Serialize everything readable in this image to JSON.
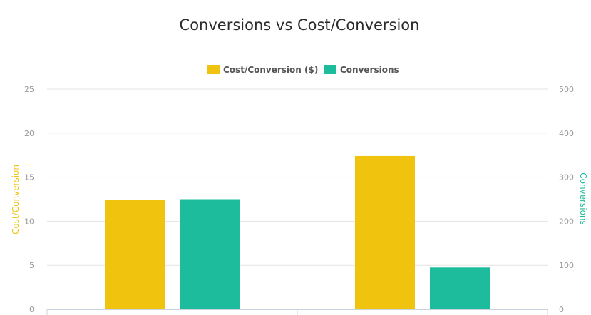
{
  "chart_data": {
    "type": "bar",
    "title": "Conversions vs Cost/Conversion",
    "categories": [
      "",
      ""
    ],
    "series": [
      {
        "name": "Cost/Conversion ($)",
        "color": "#f0c30f",
        "axis": "left",
        "values": [
          12.4,
          17.4
        ]
      },
      {
        "name": "Conversions",
        "color": "#1dbc9c",
        "axis": "right",
        "values": [
          250,
          95
        ]
      }
    ],
    "y_left": {
      "label": "Cost/Conversion",
      "color": "#f0c30f",
      "range": [
        0,
        25
      ],
      "ticks": [
        0,
        5,
        10,
        15,
        20,
        25
      ]
    },
    "y_right": {
      "label": "Conversions",
      "color": "#1dbc9c",
      "range": [
        0,
        500
      ],
      "ticks": [
        0,
        100,
        200,
        300,
        400,
        500
      ]
    },
    "grid": true,
    "legend_position": "top-center"
  }
}
